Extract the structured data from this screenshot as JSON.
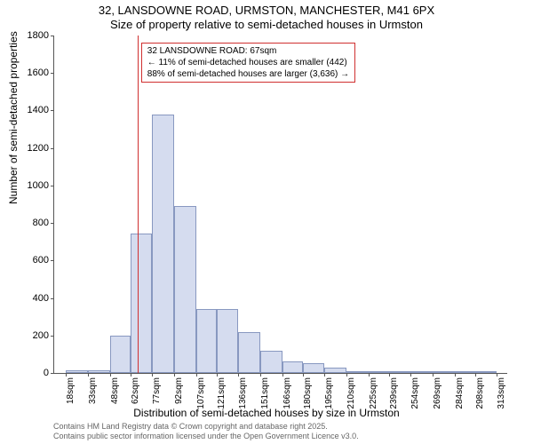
{
  "title_main": "32, LANSDOWNE ROAD, URMSTON, MANCHESTER, M41 6PX",
  "title_sub": "Size of property relative to semi-detached houses in Urmston",
  "ylabel": "Number of semi-detached properties",
  "xlabel": "Distribution of semi-detached houses by size in Urmston",
  "chart": {
    "type": "histogram",
    "xlim": [
      10,
      320
    ],
    "ylim": [
      0,
      1800
    ],
    "ytick_step": 200,
    "xticks": [
      18,
      33,
      48,
      62,
      77,
      92,
      107,
      121,
      136,
      151,
      166,
      180,
      195,
      210,
      225,
      239,
      254,
      269,
      284,
      298,
      313
    ],
    "xtick_suffix": "sqm",
    "bar_color": "#d5dcef",
    "bar_border": "#8898c0",
    "marker_color": "#d03030",
    "marker_x": 67,
    "bars": [
      {
        "x0": 18,
        "x1": 33,
        "y": 15
      },
      {
        "x0": 33,
        "x1": 48,
        "y": 15
      },
      {
        "x0": 48,
        "x1": 62,
        "y": 200
      },
      {
        "x0": 62,
        "x1": 77,
        "y": 745
      },
      {
        "x0": 77,
        "x1": 92,
        "y": 1380
      },
      {
        "x0": 92,
        "x1": 107,
        "y": 890
      },
      {
        "x0": 107,
        "x1": 121,
        "y": 340
      },
      {
        "x0": 121,
        "x1": 136,
        "y": 340
      },
      {
        "x0": 136,
        "x1": 151,
        "y": 220
      },
      {
        "x0": 151,
        "x1": 166,
        "y": 120
      },
      {
        "x0": 166,
        "x1": 180,
        "y": 60
      },
      {
        "x0": 180,
        "x1": 195,
        "y": 50
      },
      {
        "x0": 195,
        "x1": 210,
        "y": 30
      },
      {
        "x0": 210,
        "x1": 225,
        "y": 10
      },
      {
        "x0": 225,
        "x1": 239,
        "y": 10
      },
      {
        "x0": 239,
        "x1": 254,
        "y": 5
      },
      {
        "x0": 254,
        "x1": 269,
        "y": 5
      },
      {
        "x0": 269,
        "x1": 284,
        "y": 5
      },
      {
        "x0": 284,
        "x1": 298,
        "y": 3
      },
      {
        "x0": 298,
        "x1": 313,
        "y": 3
      }
    ]
  },
  "annotation": {
    "line1": "32 LANSDOWNE ROAD: 67sqm",
    "line2": "← 11% of semi-detached houses are smaller (442)",
    "line3": "88% of semi-detached houses are larger (3,636) →"
  },
  "footer": {
    "line1": "Contains HM Land Registry data © Crown copyright and database right 2025.",
    "line2": "Contains public sector information licensed under the Open Government Licence v3.0."
  }
}
